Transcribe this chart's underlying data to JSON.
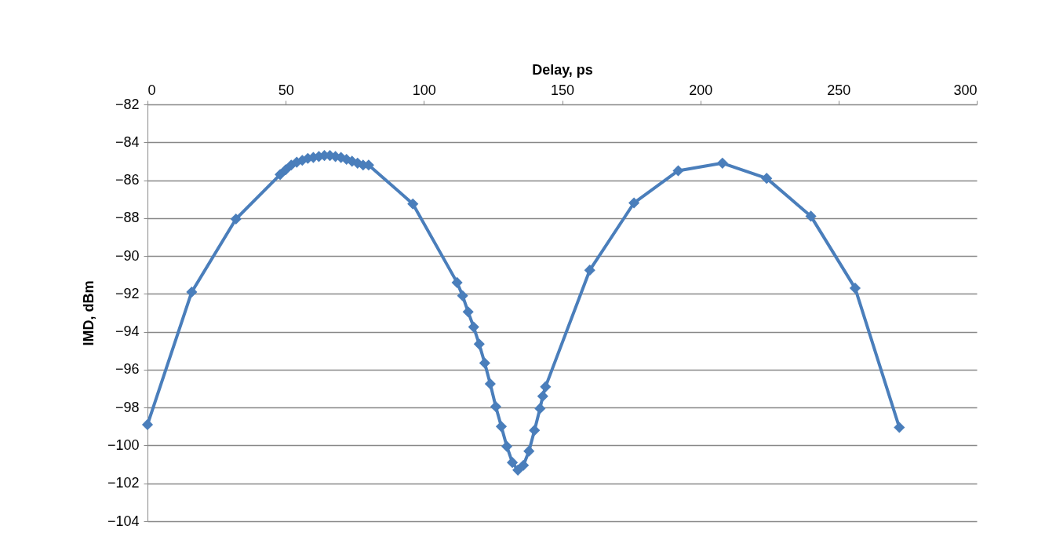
{
  "chart_data": {
    "type": "line",
    "xlabel": "Delay, ps",
    "ylabel": "IMD, dBm",
    "x": [
      0,
      16,
      32,
      48,
      50,
      52,
      54,
      56,
      58,
      60,
      62,
      64,
      66,
      68,
      70,
      72,
      74,
      76,
      78,
      80,
      96,
      112,
      114,
      116,
      118,
      120,
      122,
      124,
      126,
      128,
      130,
      132,
      134,
      136,
      138,
      140,
      142,
      143,
      144,
      160,
      176,
      192,
      208,
      224,
      240,
      256,
      272
    ],
    "series": [
      {
        "color": "#4a7ebb",
        "values": [
          -98.9,
          -91.9,
          -88.05,
          -85.7,
          -85.45,
          -85.2,
          -85.05,
          -84.95,
          -84.85,
          -84.8,
          -84.75,
          -84.7,
          -84.7,
          -84.75,
          -84.8,
          -84.9,
          -85.0,
          -85.1,
          -85.2,
          -85.2,
          -87.25,
          -91.4,
          -92.1,
          -92.95,
          -93.75,
          -94.65,
          -95.65,
          -96.75,
          -97.95,
          -99.0,
          -100.05,
          -100.9,
          -101.3,
          -101.05,
          -100.3,
          -99.2,
          -98.05,
          -97.4,
          -96.9,
          -90.75,
          -87.2,
          -85.5,
          -85.1,
          -85.9,
          -87.9,
          -91.7,
          -99.05
        ]
      }
    ],
    "xlim": [
      0,
      300
    ],
    "xticks": [
      0,
      50,
      100,
      150,
      200,
      250,
      300
    ],
    "ylim": [
      -104,
      -82
    ],
    "yticks": [
      -104,
      -102,
      -100,
      -98,
      -96,
      -94,
      -92,
      -90,
      -88,
      -86,
      -84,
      -82
    ],
    "grid": "y",
    "marker": "diamond",
    "line_style": "solid",
    "legend": false
  }
}
